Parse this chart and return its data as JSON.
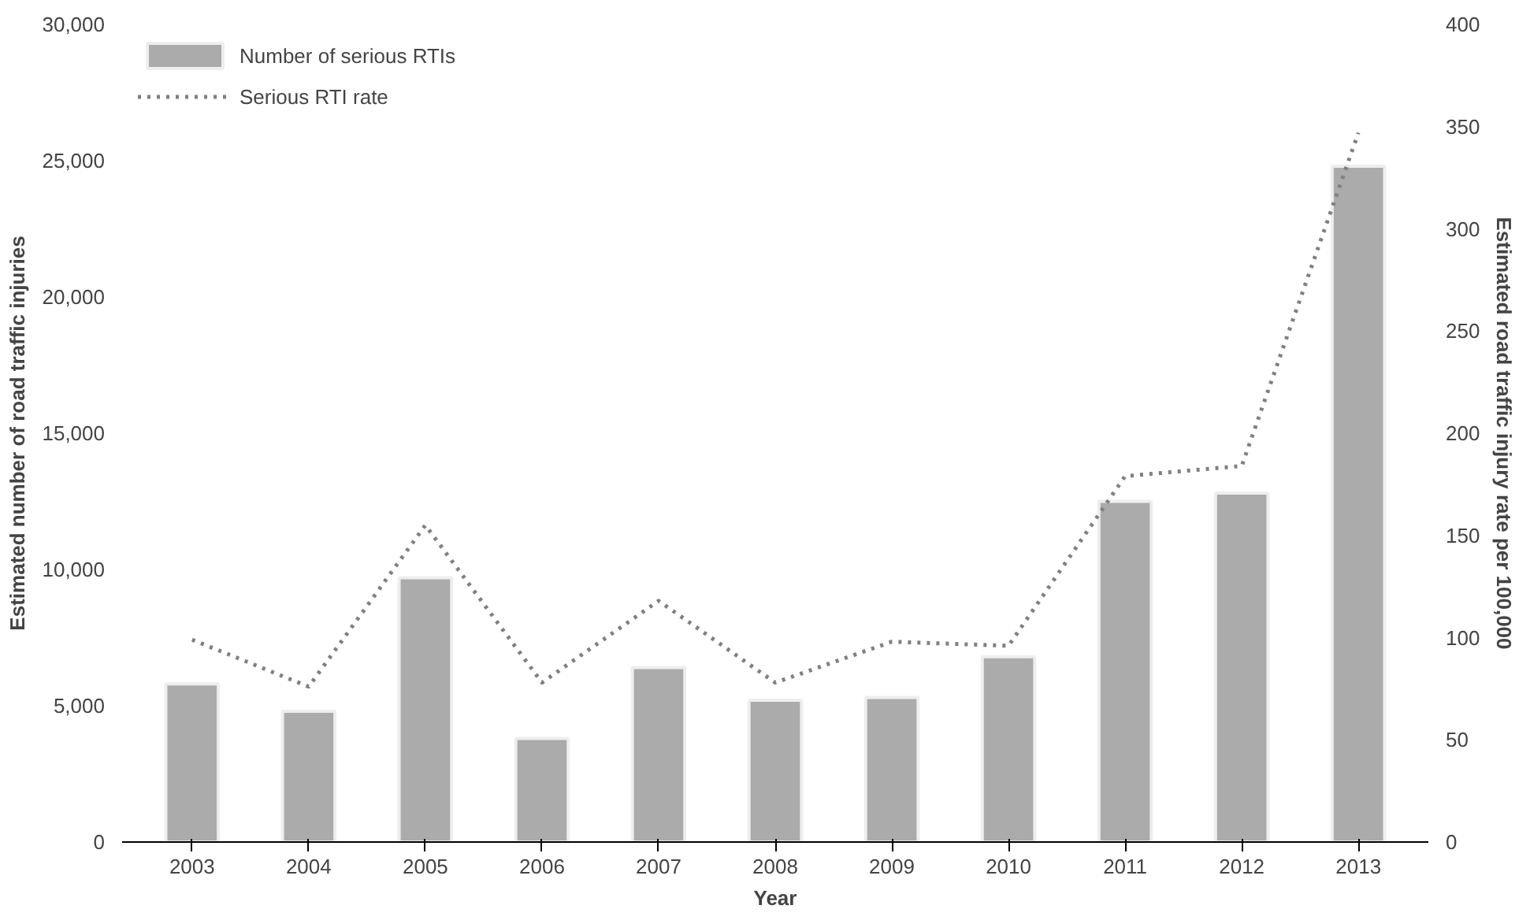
{
  "chart_data": {
    "type": "bar",
    "xlabel": "Year",
    "ylabel": "Estimated number of road traffic injuries",
    "y2label": "Estimated road traffic injury rate per 100,000",
    "categories": [
      "2003",
      "2004",
      "2005",
      "2006",
      "2007",
      "2008",
      "2009",
      "2010",
      "2011",
      "2012",
      "2013"
    ],
    "series": [
      {
        "name": "Number of serious RTIs",
        "color": "#ababab",
        "values": [
          5800,
          4800,
          9700,
          3800,
          6400,
          5200,
          5300,
          6800,
          12500,
          12800,
          24800
        ]
      },
      {
        "name": "Serious RTI rate",
        "type": "line",
        "axis": "y2",
        "color": "#808080",
        "line_style": "dotted",
        "values": [
          99,
          76,
          155,
          78,
          118,
          78,
          98,
          96,
          179,
          184,
          347
        ]
      }
    ],
    "ylim": [
      0,
      30000
    ],
    "yticks": [
      {
        "value": 0,
        "label": "0"
      },
      {
        "value": 5000,
        "label": "5,000"
      },
      {
        "value": 10000,
        "label": "10,000"
      },
      {
        "value": 15000,
        "label": "15,000"
      },
      {
        "value": 20000,
        "label": "20,000"
      },
      {
        "value": 25000,
        "label": "25,000"
      },
      {
        "value": 30000,
        "label": "30,000"
      }
    ],
    "y2lim": [
      0,
      400
    ],
    "y2ticks": [
      0,
      50,
      100,
      150,
      200,
      250,
      300,
      350,
      400
    ],
    "grid": false,
    "legend": "top left"
  }
}
